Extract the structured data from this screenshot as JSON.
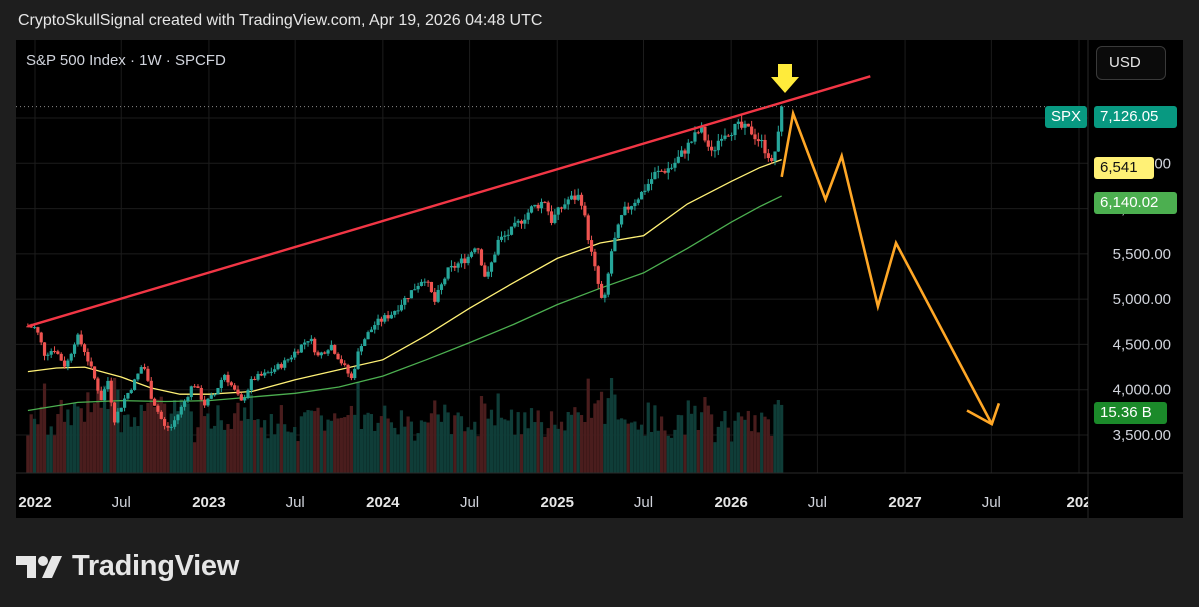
{
  "header": {
    "attribution": "CryptoSkullSignal created with TradingView.com, Apr 19, 2026 04:48 UTC"
  },
  "symbol_line": "S&P 500 Index · 1W · SPCFD",
  "currency_button": "USD",
  "price_tags": {
    "spx_label": "SPX",
    "spx_price": "7,126.05",
    "ma_fast": "6,541",
    "ma_slow": "6,140.02",
    "volume": "15.36 B"
  },
  "footer": {
    "brand": "TradingView"
  },
  "colors": {
    "background": "#000000",
    "candle_up": "#26a69a",
    "candle_down": "#ef5350",
    "trendline": "#f23645",
    "projection": "#ffa726",
    "ma_fast": "#fff176",
    "ma_slow": "#4caf50",
    "arrow": "#ffeb3b",
    "spx_tag": "#089981"
  },
  "icons": {
    "logo": "tradingview-logo",
    "down_arrow": "down-arrow-icon"
  },
  "chart_data": {
    "type": "candlestick",
    "title": "S&P 500 Index · 1W · SPCFD",
    "x_ticks": [
      {
        "label": "2022",
        "date": "2022-01-01",
        "bold": true
      },
      {
        "label": "Jul",
        "date": "2022-07-01",
        "bold": false
      },
      {
        "label": "2023",
        "date": "2023-01-01",
        "bold": true
      },
      {
        "label": "Jul",
        "date": "2023-07-01",
        "bold": false
      },
      {
        "label": "2024",
        "date": "2024-01-01",
        "bold": true
      },
      {
        "label": "Jul",
        "date": "2024-07-01",
        "bold": false
      },
      {
        "label": "2025",
        "date": "2025-01-01",
        "bold": true
      },
      {
        "label": "Jul",
        "date": "2025-07-01",
        "bold": false
      },
      {
        "label": "2026",
        "date": "2026-01-01",
        "bold": true
      },
      {
        "label": "Jul",
        "date": "2026-07-01",
        "bold": false
      },
      {
        "label": "2027",
        "date": "2027-01-01",
        "bold": true
      },
      {
        "label": "Jul",
        "date": "2027-07-01",
        "bold": false
      },
      {
        "label": "202",
        "date": "2028-01-01",
        "bold": true
      }
    ],
    "y_ticks": [
      "3,500.00",
      "4,000.00",
      "4,500.00",
      "5,000.00",
      "5,500.00",
      "6,000.00",
      "6,500.00",
      "7,000.00"
    ],
    "y_tick_values": [
      3500,
      4000,
      4500,
      5000,
      5500,
      6000,
      6500,
      7000
    ],
    "close_series": [
      [
        "2021-12-17",
        4700
      ],
      [
        "2022-01-03",
        4680
      ],
      [
        "2022-01-21",
        4400
      ],
      [
        "2022-02-11",
        4450
      ],
      [
        "2022-03-07",
        4250
      ],
      [
        "2022-03-29",
        4600
      ],
      [
        "2022-04-14",
        4450
      ],
      [
        "2022-05-06",
        4120
      ],
      [
        "2022-05-20",
        3900
      ],
      [
        "2022-06-03",
        4100
      ],
      [
        "2022-06-17",
        3670
      ],
      [
        "2022-07-08",
        3900
      ],
      [
        "2022-08-01",
        4120
      ],
      [
        "2022-08-16",
        4300
      ],
      [
        "2022-09-02",
        3930
      ],
      [
        "2022-09-30",
        3590
      ],
      [
        "2022-10-13",
        3580
      ],
      [
        "2022-11-04",
        3800
      ],
      [
        "2022-11-30",
        4080
      ],
      [
        "2022-12-23",
        3840
      ],
      [
        "2023-01-13",
        3950
      ],
      [
        "2023-02-02",
        4180
      ],
      [
        "2023-03-10",
        3860
      ],
      [
        "2023-04-03",
        4120
      ],
      [
        "2023-05-01",
        4170
      ],
      [
        "2023-06-09",
        4300
      ],
      [
        "2023-07-31",
        4580
      ],
      [
        "2023-08-18",
        4370
      ],
      [
        "2023-09-14",
        4500
      ],
      [
        "2023-10-27",
        4120
      ],
      [
        "2023-11-15",
        4500
      ],
      [
        "2023-12-15",
        4720
      ],
      [
        "2024-01-19",
        4840
      ],
      [
        "2024-02-16",
        5000
      ],
      [
        "2024-03-28",
        5250
      ],
      [
        "2024-04-19",
        4970
      ],
      [
        "2024-05-15",
        5300
      ],
      [
        "2024-06-28",
        5470
      ],
      [
        "2024-07-16",
        5630
      ],
      [
        "2024-08-05",
        5200
      ],
      [
        "2024-08-30",
        5640
      ],
      [
        "2024-09-25",
        5740
      ],
      [
        "2024-11-08",
        6000
      ],
      [
        "2024-12-06",
        6090
      ],
      [
        "2024-12-20",
        5870
      ],
      [
        "2025-01-24",
        6100
      ],
      [
        "2025-02-19",
        6140
      ],
      [
        "2025-03-13",
        5520
      ],
      [
        "2025-04-08",
        4900
      ],
      [
        "2025-04-25",
        5530
      ],
      [
        "2025-05-19",
        5950
      ],
      [
        "2025-06-27",
        6170
      ],
      [
        "2025-07-25",
        6380
      ],
      [
        "2025-08-29",
        6460
      ],
      [
        "2025-09-26",
        6650
      ],
      [
        "2025-10-29",
        6880
      ],
      [
        "2025-11-21",
        6600
      ],
      [
        "2025-12-12",
        6830
      ],
      [
        "2026-01-16",
        6900
      ],
      [
        "2026-02-13",
        6850
      ],
      [
        "2026-03-06",
        6720
      ],
      [
        "2026-03-20",
        6600
      ],
      [
        "2026-03-27",
        6480
      ],
      [
        "2026-04-10",
        6800
      ],
      [
        "2026-04-17",
        7126
      ]
    ],
    "volume": {
      "label": "15.36 B"
    },
    "moving_averages": [
      {
        "name": "6,541",
        "color": "#fff176",
        "points": [
          [
            "2021-12-17",
            4200
          ],
          [
            "2022-02-15",
            4240
          ],
          [
            "2022-04-15",
            4250
          ],
          [
            "2022-07-01",
            4140
          ],
          [
            "2022-09-01",
            4020
          ],
          [
            "2022-11-01",
            3950
          ],
          [
            "2023-01-01",
            3950
          ],
          [
            "2023-04-01",
            3980
          ],
          [
            "2023-07-01",
            4110
          ],
          [
            "2023-10-01",
            4220
          ],
          [
            "2024-01-01",
            4330
          ],
          [
            "2024-04-01",
            4600
          ],
          [
            "2024-07-01",
            4900
          ],
          [
            "2024-10-01",
            5180
          ],
          [
            "2025-01-01",
            5450
          ],
          [
            "2025-04-01",
            5620
          ],
          [
            "2025-07-01",
            5700
          ],
          [
            "2025-10-01",
            6050
          ],
          [
            "2026-01-01",
            6300
          ],
          [
            "2026-03-01",
            6450
          ],
          [
            "2026-04-17",
            6541
          ]
        ]
      },
      {
        "name": "6,140.02",
        "color": "#4caf50",
        "points": [
          [
            "2021-12-17",
            3770
          ],
          [
            "2022-04-01",
            3860
          ],
          [
            "2022-07-01",
            3880
          ],
          [
            "2022-10-01",
            3870
          ],
          [
            "2023-01-01",
            3880
          ],
          [
            "2023-04-01",
            3920
          ],
          [
            "2023-07-01",
            3960
          ],
          [
            "2023-10-01",
            4030
          ],
          [
            "2024-01-01",
            4150
          ],
          [
            "2024-04-01",
            4330
          ],
          [
            "2024-07-01",
            4520
          ],
          [
            "2024-10-01",
            4720
          ],
          [
            "2025-01-01",
            4940
          ],
          [
            "2025-04-01",
            5120
          ],
          [
            "2025-07-01",
            5290
          ],
          [
            "2025-10-01",
            5560
          ],
          [
            "2026-01-01",
            5850
          ],
          [
            "2026-03-01",
            6020
          ],
          [
            "2026-04-17",
            6140
          ]
        ]
      }
    ],
    "drawings": {
      "trendline": [
        [
          "2021-12-17",
          4700
        ],
        [
          "2026-10-20",
          7460
        ]
      ],
      "projection": [
        [
          "2026-04-17",
          6350
        ],
        [
          "2026-05-11",
          7050
        ],
        [
          "2026-07-18",
          6100
        ],
        [
          "2026-08-21",
          6580
        ],
        [
          "2026-11-05",
          4920
        ],
        [
          "2026-12-13",
          5620
        ],
        [
          "2027-07-02",
          3620
        ]
      ],
      "projection_arrowhead": [
        [
          "2027-05-11",
          3770
        ],
        [
          "2027-07-02",
          3620
        ],
        [
          "2027-07-17",
          3850
        ]
      ],
      "marker_date": "2026-04-24"
    },
    "last_price": 7126.05,
    "grid": true,
    "legend": "none"
  }
}
